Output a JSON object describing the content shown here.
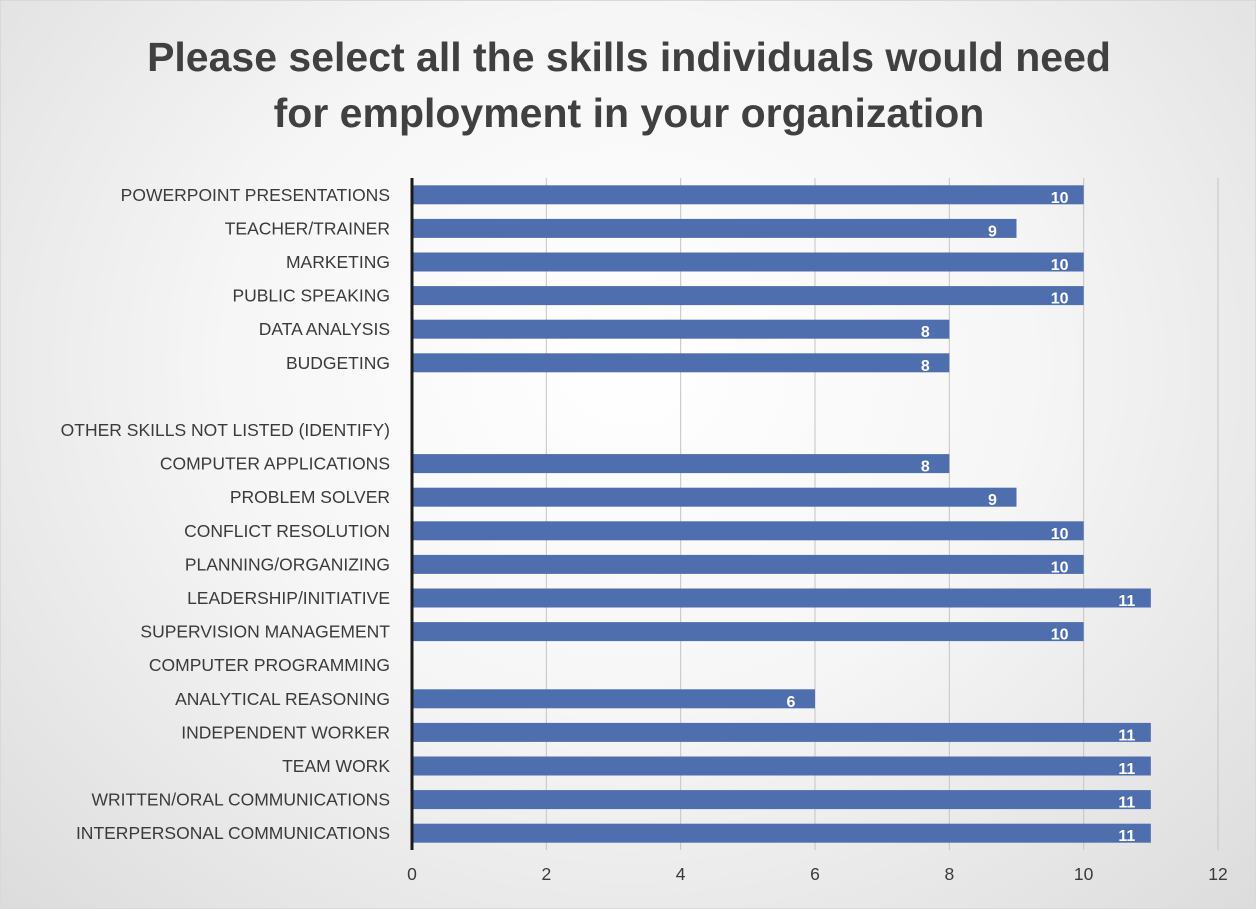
{
  "chart_data": {
    "type": "bar",
    "orientation": "horizontal",
    "title_lines": [
      "Please select all the skills individuals would need",
      "for employment  in your organization"
    ],
    "categories": [
      "POWERPOINT PRESENTATIONS",
      "TEACHER/TRAINER",
      "MARKETING",
      "PUBLIC SPEAKING",
      "DATA ANALYSIS",
      "BUDGETING",
      "",
      "OTHER SKILLS NOT LISTED (IDENTIFY)",
      "COMPUTER APPLICATIONS",
      "PROBLEM SOLVER",
      "CONFLICT RESOLUTION",
      "PLANNING/ORGANIZING",
      "LEADERSHIP/INITIATIVE",
      "SUPERVISION MANAGEMENT",
      "COMPUTER PROGRAMMING",
      "ANALYTICAL REASONING",
      "INDEPENDENT WORKER",
      "TEAM WORK",
      "WRITTEN/ORAL COMMUNICATIONS",
      "INTERPERSONAL COMMUNICATIONS"
    ],
    "values": [
      10,
      9,
      10,
      10,
      8,
      8,
      null,
      null,
      8,
      9,
      10,
      10,
      11,
      10,
      null,
      6,
      11,
      11,
      11,
      11
    ],
    "xlim": [
      0,
      12
    ],
    "xticks": [
      0,
      2,
      4,
      6,
      8,
      10,
      12
    ],
    "grid": "vertical",
    "legend": "none",
    "bar_color": "#4e6eae",
    "label_color": "#ffffff"
  }
}
